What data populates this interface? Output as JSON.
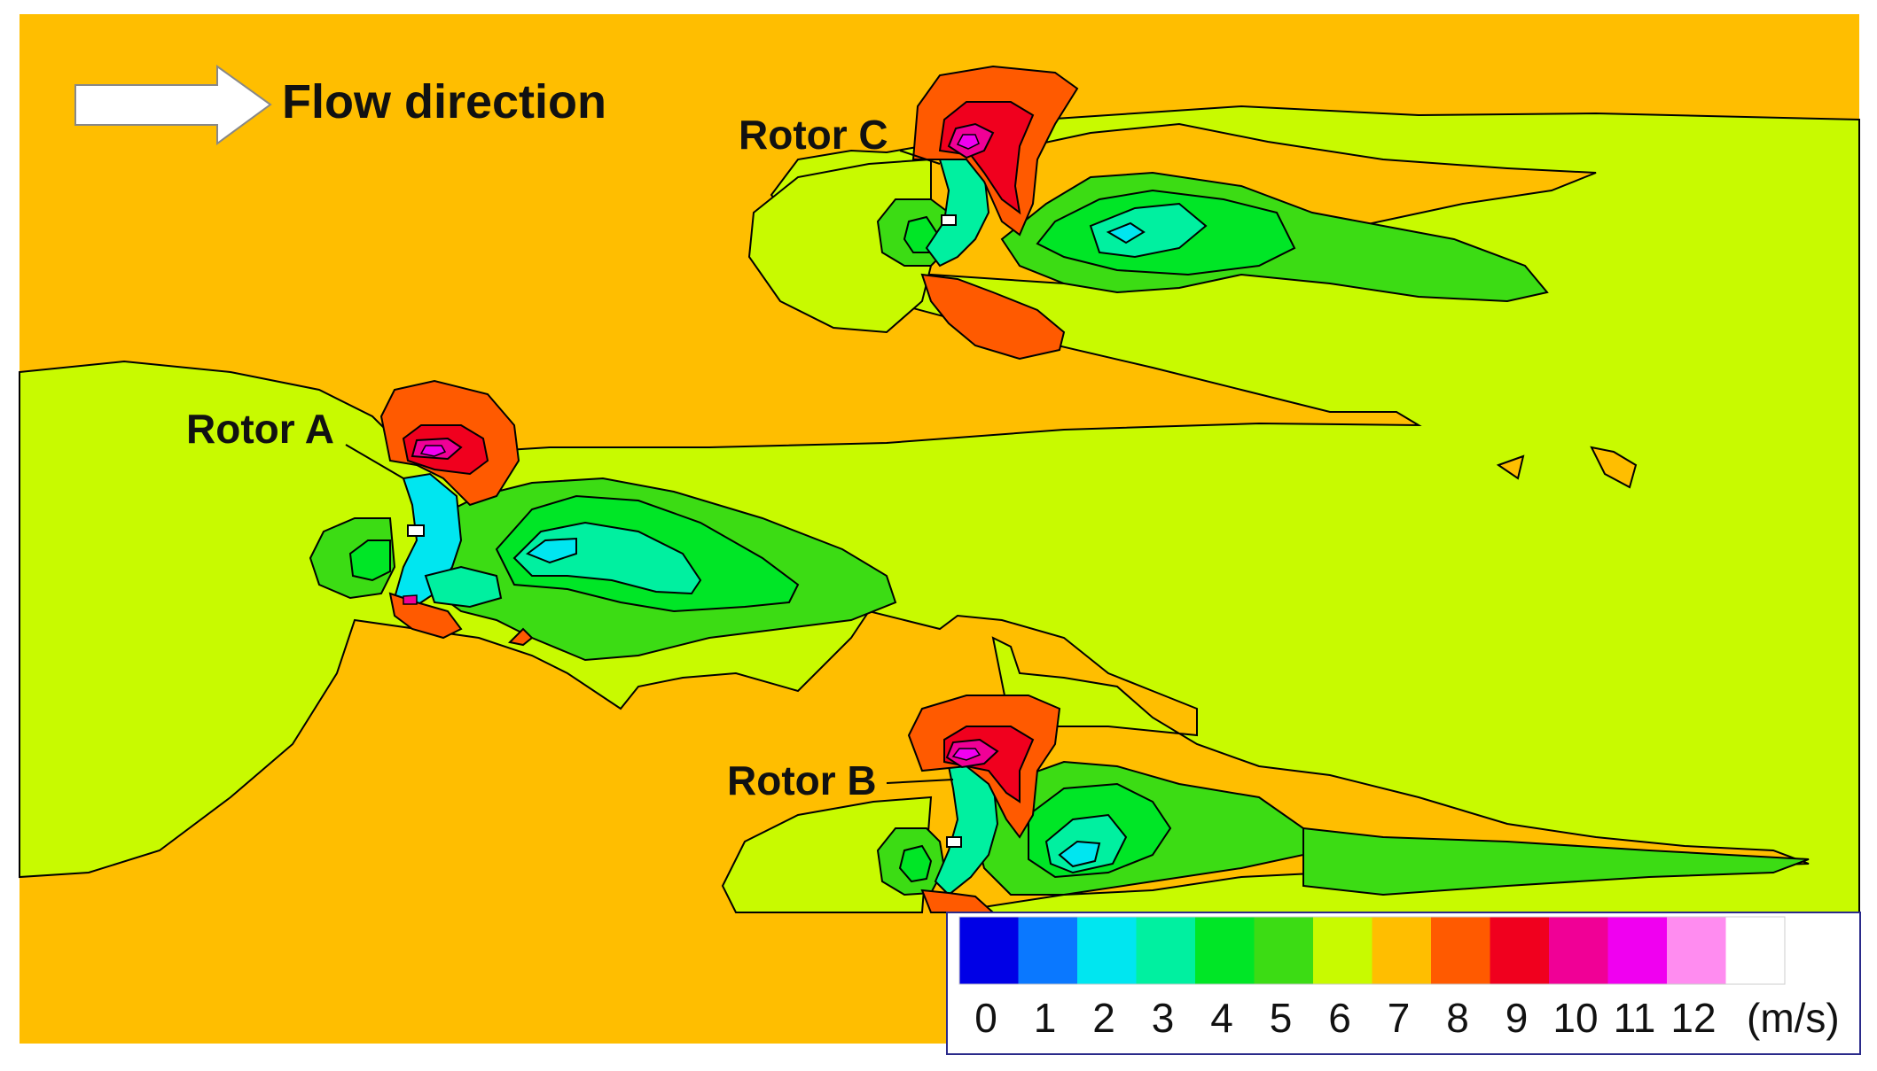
{
  "flow_label": "Flow direction",
  "rotors": [
    {
      "label": "Rotor A"
    },
    {
      "label": "Rotor B"
    },
    {
      "label": "Rotor C"
    }
  ],
  "legend": {
    "unit": "(m/s)",
    "ticks": [
      "0",
      "1",
      "2",
      "3",
      "4",
      "5",
      "6",
      "7",
      "8",
      "9",
      "10",
      "11",
      "12"
    ],
    "band_colors": [
      "#0000e6",
      "#0a78ff",
      "#00e6f0",
      "#00f0a0",
      "#00e626",
      "#3cdc14",
      "#c8fa00",
      "#ffbe00",
      "#ff5a00",
      "#f0001e",
      "#f00096",
      "#f000f0",
      "#ff8cf0",
      "#ffffff"
    ]
  },
  "colors": {
    "background": "#ffbe00",
    "wake_low": "#c8fa00",
    "wake_mid": "#3cdc14",
    "wake_core": "#00f0a0",
    "wake_deep": "#00e6f0",
    "jet_high": "#ff5a00",
    "jet_peak": "#f0001e",
    "jet_max": "#f000f0"
  }
}
